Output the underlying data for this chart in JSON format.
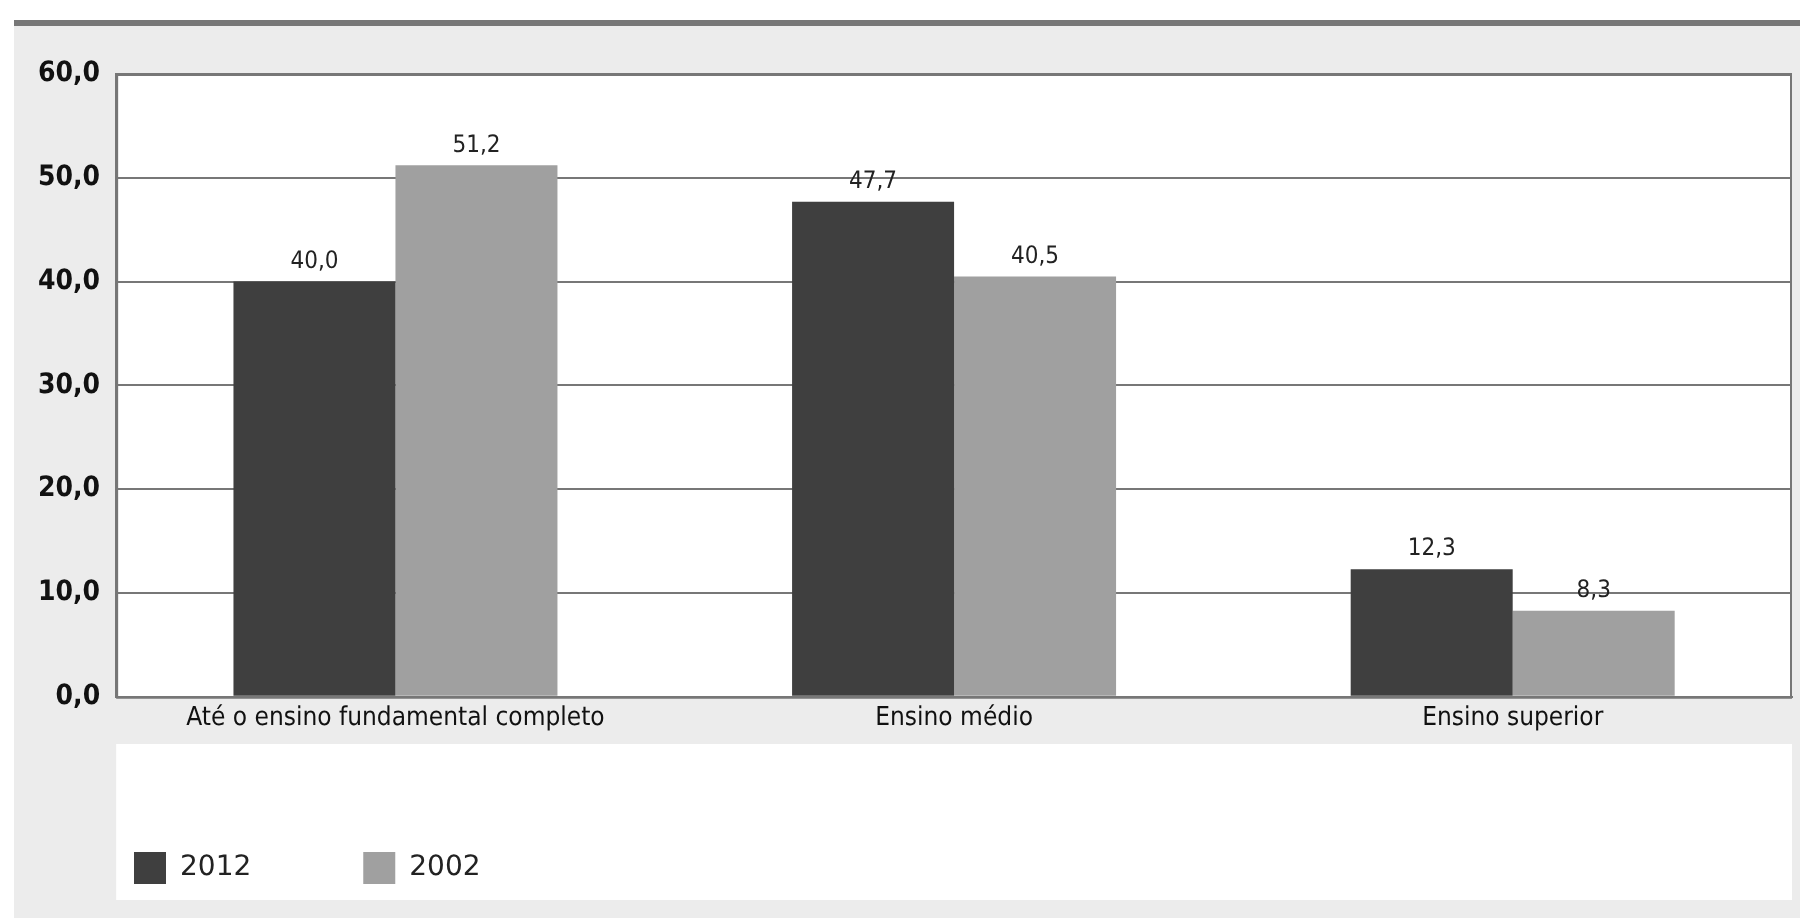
{
  "chart_data": {
    "type": "bar",
    "categories": [
      "Até o ensino fundamental completo",
      "Ensino médio",
      "Ensino superior"
    ],
    "series": [
      {
        "name": "2012",
        "color": "#3f3f3f",
        "values": [
          40.0,
          47.7,
          12.3
        ],
        "value_labels": [
          "40,0",
          "47,7",
          "12,3"
        ]
      },
      {
        "name": "2002",
        "color": "#a0a0a0",
        "values": [
          51.2,
          40.5,
          8.3
        ],
        "value_labels": [
          "51,2",
          "40,5",
          "8,3"
        ]
      }
    ],
    "ylim": [
      0,
      60
    ],
    "yticks": [
      {
        "value": 0,
        "label": "0,0"
      },
      {
        "value": 10,
        "label": "10,0"
      },
      {
        "value": 20,
        "label": "20,0"
      },
      {
        "value": 30,
        "label": "30,0"
      },
      {
        "value": 40,
        "label": "40,0"
      },
      {
        "value": 50,
        "label": "50,0"
      },
      {
        "value": 60,
        "label": "60,0"
      }
    ],
    "grid": "y",
    "legend": "bottom left"
  }
}
